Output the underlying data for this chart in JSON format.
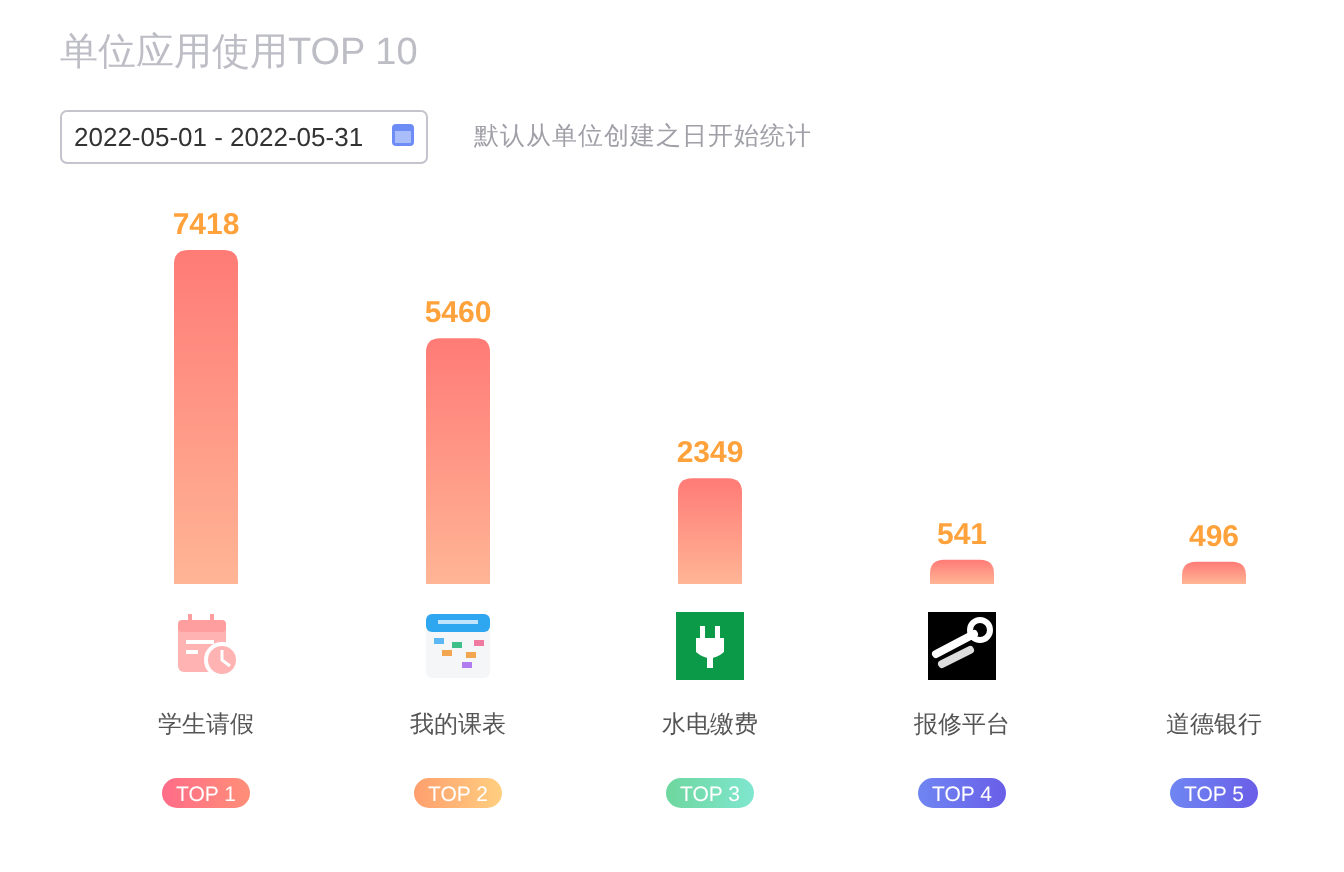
{
  "chart_data": {
    "type": "bar",
    "title": "单位应用使用TOP 10",
    "subtitle": "默认从单位创建之日开始统计",
    "categories": [
      "学生请假",
      "我的课表",
      "水电缴费",
      "报修平台",
      "道德银行"
    ],
    "values": [
      7418,
      5460,
      2349,
      541,
      496
    ],
    "color": "#ff7b76",
    "data_labels": true,
    "annotations": [
      "2022-05-01 - 2022-05-31",
      "TOP 1",
      "TOP 2",
      "TOP 3",
      "TOP 4",
      "TOP 5"
    ]
  }
}
